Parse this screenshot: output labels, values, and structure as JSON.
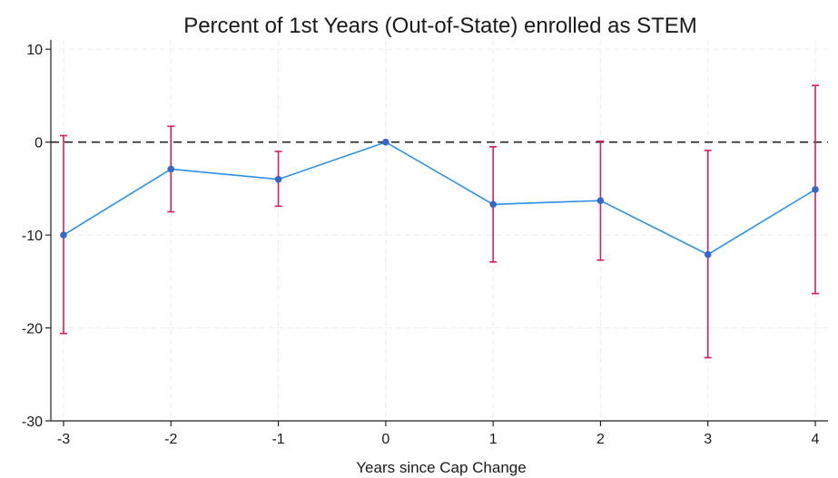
{
  "chart_data": {
    "type": "line",
    "title": "Percent of 1st Years (Out-of-State) enrolled as STEM",
    "xlabel": "Years since Cap Change",
    "ylabel": "",
    "xlim": [
      -3,
      4
    ],
    "ylim": [
      -30,
      11
    ],
    "xticks": [
      -3,
      -2,
      -1,
      0,
      1,
      2,
      3,
      4
    ],
    "yticks": [
      10,
      0,
      -10,
      -20,
      -30
    ],
    "grid": true,
    "reference_line": {
      "y": 0,
      "style": "dashed"
    },
    "series": [
      {
        "x": [
          -3,
          -2,
          -1,
          0,
          1,
          2,
          3,
          4
        ],
        "y": [
          -10.0,
          -2.9,
          -4.0,
          0.0,
          -6.7,
          -6.3,
          -12.1,
          -5.1
        ],
        "ci_low": [
          -20.6,
          -7.5,
          -6.9,
          0.0,
          -12.9,
          -12.7,
          -23.2,
          -16.3
        ],
        "ci_high": [
          0.7,
          1.7,
          -1.0,
          0.0,
          -0.5,
          0.1,
          -0.9,
          6.1
        ]
      }
    ],
    "colors": {
      "line": "#2b8fe6",
      "marker": "#3a66c8",
      "error_bar": "#d61f5c"
    }
  }
}
